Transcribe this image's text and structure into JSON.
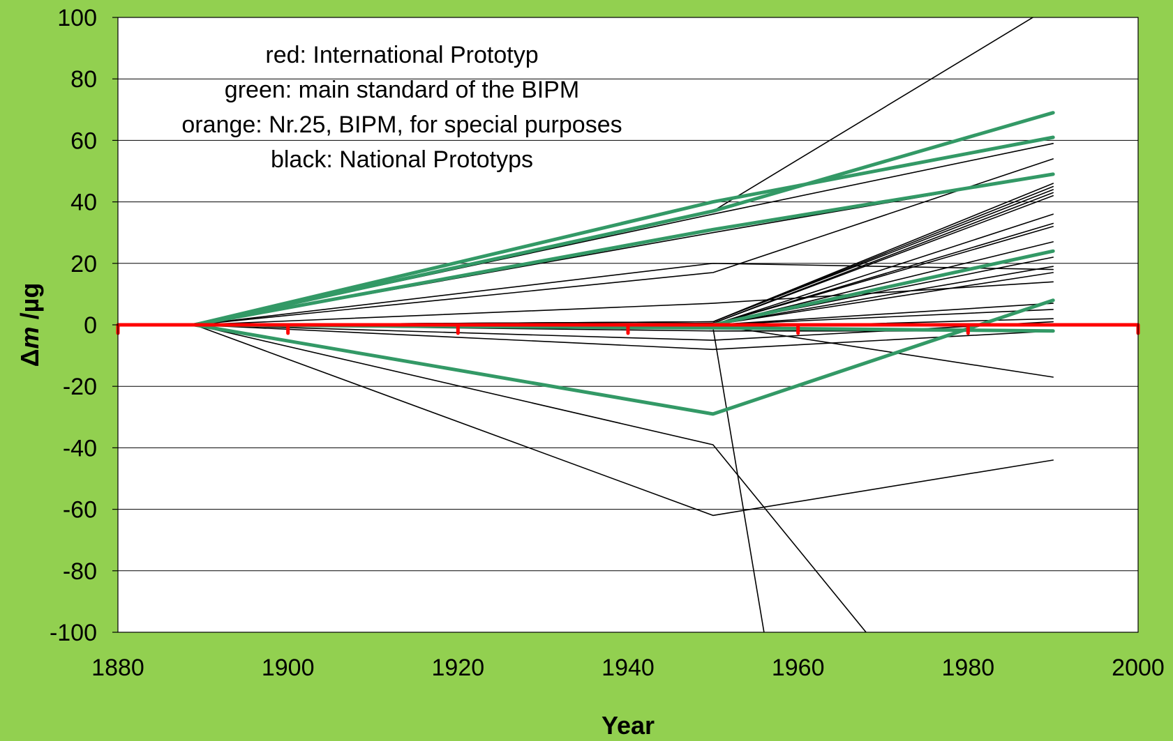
{
  "chart_data": {
    "type": "line",
    "xlabel": "Year",
    "ylabel_symbol": "Δ",
    "ylabel_var": "m",
    "ylabel_unit": " /µg",
    "xlim": [
      1880,
      2000
    ],
    "ylim": [
      -100,
      100
    ],
    "x_ticks": [
      1880,
      1900,
      1920,
      1940,
      1960,
      1980,
      2000
    ],
    "y_ticks": [
      100,
      80,
      60,
      40,
      20,
      0,
      -20,
      -40,
      -60,
      -80,
      -100
    ],
    "grid": "horizontal",
    "annotations": [
      "red: International Prototyp",
      "green: main standard of the BIPM",
      "orange: Nr.25, BIPM, for special purposes",
      "black: National Prototyps"
    ],
    "colors": {
      "background": "#92d050",
      "plot_area": "#ffffff",
      "red": "#ff0000",
      "green": "#339966",
      "black": "#000000"
    },
    "series": [
      {
        "color": "red",
        "x": [
          1880,
          2000
        ],
        "y": [
          0,
          0
        ],
        "markers_x": [
          1880,
          1900,
          1920,
          1940,
          1960,
          1980,
          2000
        ],
        "markers_y": [
          0,
          0,
          0,
          0,
          0,
          0,
          0
        ]
      },
      {
        "color": "green",
        "x": [
          1889,
          1950,
          1990
        ],
        "y": [
          0,
          40,
          61
        ]
      },
      {
        "color": "green",
        "x": [
          1889,
          1950,
          1990
        ],
        "y": [
          0,
          37,
          69
        ]
      },
      {
        "color": "green",
        "x": [
          1889,
          1950,
          1990
        ],
        "y": [
          0,
          31,
          49
        ]
      },
      {
        "color": "green",
        "x": [
          1889,
          1950,
          1990
        ],
        "y": [
          0,
          0,
          24
        ]
      },
      {
        "color": "green",
        "x": [
          1889,
          1950,
          1990
        ],
        "y": [
          0,
          -29,
          8
        ]
      },
      {
        "color": "green",
        "x": [
          1889,
          1950,
          1990
        ],
        "y": [
          0,
          -1,
          -2
        ]
      },
      {
        "color": "black",
        "x": [
          1889,
          1950,
          1990
        ],
        "y": [
          0,
          37,
          104
        ]
      },
      {
        "color": "black",
        "x": [
          1889,
          1950,
          1990
        ],
        "y": [
          0,
          36,
          59
        ]
      },
      {
        "color": "black",
        "x": [
          1889,
          1950,
          1990
        ],
        "y": [
          0,
          30,
          49
        ]
      },
      {
        "color": "black",
        "x": [
          1889,
          1950,
          1990
        ],
        "y": [
          0,
          17,
          54
        ]
      },
      {
        "color": "black",
        "x": [
          1889,
          1950,
          1990
        ],
        "y": [
          0,
          20,
          18
        ]
      },
      {
        "color": "black",
        "x": [
          1889,
          1950,
          1990
        ],
        "y": [
          0,
          7,
          14
        ]
      },
      {
        "color": "black",
        "x": [
          1889,
          1950,
          1990
        ],
        "y": [
          0,
          1,
          46
        ]
      },
      {
        "color": "black",
        "x": [
          1889,
          1950,
          1990
        ],
        "y": [
          0,
          1,
          45
        ]
      },
      {
        "color": "black",
        "x": [
          1889,
          1950,
          1990
        ],
        "y": [
          0,
          1,
          44
        ]
      },
      {
        "color": "black",
        "x": [
          1889,
          1950,
          1990
        ],
        "y": [
          0,
          0.5,
          43
        ]
      },
      {
        "color": "black",
        "x": [
          1889,
          1950,
          1990
        ],
        "y": [
          0,
          0.5,
          42
        ]
      },
      {
        "color": "black",
        "x": [
          1889,
          1950,
          1990
        ],
        "y": [
          0,
          0,
          36
        ]
      },
      {
        "color": "black",
        "x": [
          1889,
          1950,
          1990
        ],
        "y": [
          0,
          0,
          33
        ]
      },
      {
        "color": "black",
        "x": [
          1889,
          1950,
          1990
        ],
        "y": [
          0,
          0,
          32
        ]
      },
      {
        "color": "black",
        "x": [
          1889,
          1950,
          1990
        ],
        "y": [
          0,
          0,
          27
        ]
      },
      {
        "color": "black",
        "x": [
          1889,
          1950,
          1990
        ],
        "y": [
          0,
          0,
          22
        ]
      },
      {
        "color": "black",
        "x": [
          1889,
          1950,
          1990
        ],
        "y": [
          0,
          0,
          19
        ]
      },
      {
        "color": "black",
        "x": [
          1889,
          1950,
          1990
        ],
        "y": [
          0,
          0,
          17
        ]
      },
      {
        "color": "black",
        "x": [
          1889,
          1950,
          1990
        ],
        "y": [
          0,
          0,
          7
        ]
      },
      {
        "color": "black",
        "x": [
          1889,
          1950,
          1990
        ],
        "y": [
          0,
          0,
          5
        ]
      },
      {
        "color": "black",
        "x": [
          1889,
          1950,
          1990
        ],
        "y": [
          0,
          -1,
          2
        ]
      },
      {
        "color": "black",
        "x": [
          1889,
          1950,
          1990
        ],
        "y": [
          0,
          -2,
          -2
        ]
      },
      {
        "color": "black",
        "x": [
          1889,
          1950,
          1990
        ],
        "y": [
          0,
          -5,
          1
        ]
      },
      {
        "color": "black",
        "x": [
          1889,
          1950,
          1990
        ],
        "y": [
          0,
          -8,
          -2
        ]
      },
      {
        "color": "black",
        "x": [
          1889,
          1950,
          1990
        ],
        "y": [
          0,
          0,
          -17
        ]
      },
      {
        "color": "black",
        "x": [
          1889,
          1950,
          1990
        ],
        "y": [
          0,
          -62,
          -44
        ]
      },
      {
        "color": "black",
        "x": [
          1889,
          1950,
          1968
        ],
        "y": [
          0,
          -39,
          -100
        ]
      },
      {
        "color": "black",
        "x": [
          1889,
          1950,
          1956
        ],
        "y": [
          0,
          -1,
          -100
        ]
      }
    ]
  }
}
